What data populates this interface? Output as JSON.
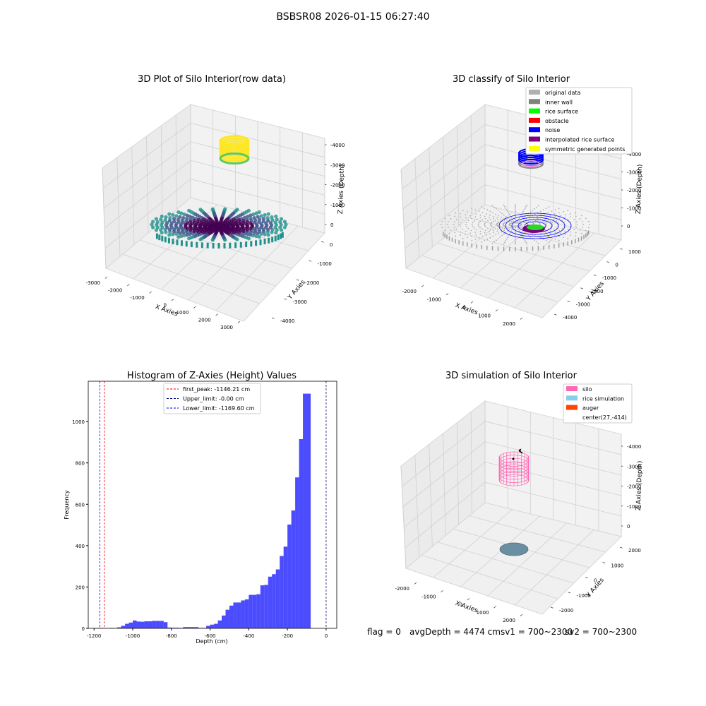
{
  "page": {
    "title": "BSBSR08 2026-01-15 06:27:40"
  },
  "status_bar": {
    "flag": "flag = 0",
    "avg_depth": "avgDepth = 4474 cmsv1 = 700~2300",
    "sv2": "sv2 = 700~2300"
  },
  "chart_data": [
    {
      "id": "raw3d",
      "type": "scatter3d",
      "title": "3D Plot of Silo Interior(row data)",
      "xlabel": "X Axies",
      "ylabel": "Y Axies",
      "zlabel": "Z Axies (Depth)",
      "xticks": [
        -3000,
        -2000,
        -1000,
        0,
        1000,
        2000,
        3000
      ],
      "yticks": [
        -4000,
        -3000,
        -2000,
        -1000,
        0
      ],
      "zticks": [
        -4000,
        -3000,
        -2000,
        -1000,
        0
      ],
      "colormap": [
        "#440154",
        "#3b528b",
        "#21918c",
        "#5ec962",
        "#fde725"
      ]
    },
    {
      "id": "classify3d",
      "type": "scatter3d",
      "title": "3D classify of Silo Interior",
      "xlabel": "X Axies",
      "ylabel": "Y Axies",
      "zlabel": "Z Axies (Depth)",
      "xticks": [
        -2000,
        -1000,
        0,
        1000,
        2000
      ],
      "yticks": [
        -4000,
        -3000,
        -2000,
        -1000,
        0,
        1000
      ],
      "zticks": [
        -4000,
        -3000,
        -2000,
        -1000,
        0
      ],
      "legend": [
        {
          "label": "original data",
          "color": "#b0b0b0"
        },
        {
          "label": "inner wall",
          "color": "#808080"
        },
        {
          "label": "rice surface",
          "color": "#00ff00"
        },
        {
          "label": "obstacle",
          "color": "#ff0000"
        },
        {
          "label": "noise",
          "color": "#0000ff"
        },
        {
          "label": "interpolated rice surface",
          "color": "#800080"
        },
        {
          "label": "symmetric generated points",
          "color": "#ffff00"
        }
      ],
      "legend_position": "upper-right"
    },
    {
      "id": "histogram",
      "type": "bar",
      "title": "Histogram of Z-Axies (Height) Values",
      "xlabel": "Depth (cm)",
      "ylabel": "Frequency",
      "xlim": [
        -1230,
        55
      ],
      "ylim": [
        0,
        1195
      ],
      "xticks": [
        -1200,
        -1000,
        -800,
        -600,
        -400,
        -200,
        0
      ],
      "yticks": [
        0,
        200,
        400,
        600,
        800,
        1000
      ],
      "bar_color": "#0000ff",
      "bin_width": 20,
      "bins": [
        {
          "x": -1170,
          "y": 2
        },
        {
          "x": -1150,
          "y": 1
        },
        {
          "x": -1110,
          "y": 2
        },
        {
          "x": -1070,
          "y": 5
        },
        {
          "x": -1050,
          "y": 12
        },
        {
          "x": -1030,
          "y": 22
        },
        {
          "x": -1010,
          "y": 28
        },
        {
          "x": -990,
          "y": 38
        },
        {
          "x": -970,
          "y": 33
        },
        {
          "x": -950,
          "y": 32
        },
        {
          "x": -930,
          "y": 34
        },
        {
          "x": -910,
          "y": 34
        },
        {
          "x": -890,
          "y": 36
        },
        {
          "x": -870,
          "y": 36
        },
        {
          "x": -850,
          "y": 36
        },
        {
          "x": -830,
          "y": 30
        },
        {
          "x": -810,
          "y": 4
        },
        {
          "x": -790,
          "y": 3
        },
        {
          "x": -770,
          "y": 3
        },
        {
          "x": -750,
          "y": 2
        },
        {
          "x": -730,
          "y": 6
        },
        {
          "x": -710,
          "y": 6
        },
        {
          "x": -690,
          "y": 6
        },
        {
          "x": -670,
          "y": 6
        },
        {
          "x": -650,
          "y": 2
        },
        {
          "x": -630,
          "y": 2
        },
        {
          "x": -610,
          "y": 12
        },
        {
          "x": -590,
          "y": 18
        },
        {
          "x": -570,
          "y": 22
        },
        {
          "x": -550,
          "y": 38
        },
        {
          "x": -530,
          "y": 62
        },
        {
          "x": -510,
          "y": 90
        },
        {
          "x": -490,
          "y": 110
        },
        {
          "x": -470,
          "y": 125
        },
        {
          "x": -450,
          "y": 125
        },
        {
          "x": -430,
          "y": 135
        },
        {
          "x": -410,
          "y": 140
        },
        {
          "x": -390,
          "y": 162
        },
        {
          "x": -370,
          "y": 162
        },
        {
          "x": -350,
          "y": 165
        },
        {
          "x": -330,
          "y": 208
        },
        {
          "x": -310,
          "y": 210
        },
        {
          "x": -290,
          "y": 250
        },
        {
          "x": -270,
          "y": 262
        },
        {
          "x": -250,
          "y": 285
        },
        {
          "x": -230,
          "y": 350
        },
        {
          "x": -210,
          "y": 395
        },
        {
          "x": -190,
          "y": 502
        },
        {
          "x": -170,
          "y": 570
        },
        {
          "x": -150,
          "y": 730
        },
        {
          "x": -130,
          "y": 915
        },
        {
          "x": -110,
          "y": 1135
        },
        {
          "x": -90,
          "y": 1135
        }
      ],
      "vlines": [
        {
          "label": "first_peak: -1146.21 cm",
          "x": -1146.21,
          "color": "#ff0000"
        },
        {
          "label": "Upper_limit: -0.00 cm",
          "x": 0,
          "color": "#000080"
        },
        {
          "label": "Lower_limit: -1169.60 cm",
          "x": -1169.6,
          "color": "#0000ff"
        }
      ],
      "legend_position": "upper-center"
    },
    {
      "id": "simulation3d",
      "type": "surface3d",
      "title": "3D simulation of Silo Interior",
      "xlabel": "X Axies",
      "ylabel": "Y Axies",
      "zlabel": "Z Axies (Depth)",
      "xticks": [
        -2000,
        -1000,
        0,
        1000,
        2000
      ],
      "yticks": [
        -2000,
        -1000,
        0,
        1000,
        2000
      ],
      "zticks": [
        -4000,
        -3000,
        -2000,
        -1000,
        0
      ],
      "legend": [
        {
          "label": "silo",
          "color": "#ff69b4"
        },
        {
          "label": "rice simulation",
          "color": "#87ceeb"
        },
        {
          "label": "auger",
          "color": "#ff4500"
        },
        {
          "label": "center(27,-414)",
          "color": ""
        }
      ],
      "legend_position": "upper-right"
    }
  ]
}
